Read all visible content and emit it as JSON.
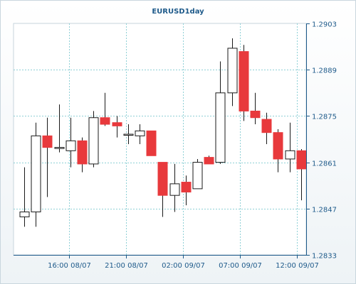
{
  "chart_data": {
    "type": "candlestick",
    "title": "EURUSD1day",
    "ylim": [
      1.2833,
      1.2903
    ],
    "y_ticks": [
      "1.2903",
      "1.2889",
      "1.2875",
      "1.2861",
      "1.2847",
      "1.2833"
    ],
    "x_ticks": [
      "16:00 08/07",
      "21:00 08/07",
      "02:00 09/07",
      "07:00 09/07",
      "12:00 09/07"
    ],
    "grid": true,
    "colors": {
      "up_fill": "#ffffff",
      "down_fill": "#e8393c",
      "wick": "#1a1a1a",
      "grid": "#8fd0d6",
      "axis": "#1e5a8a"
    },
    "candles": [
      {
        "o": 1.28445,
        "h": 1.28595,
        "l": 1.28415,
        "c": 1.2846
      },
      {
        "o": 1.2846,
        "h": 1.2873,
        "l": 1.28415,
        "c": 1.2869
      },
      {
        "o": 1.2869,
        "h": 1.28745,
        "l": 1.28505,
        "c": 1.28655
      },
      {
        "o": 1.28655,
        "h": 1.28785,
        "l": 1.2864,
        "c": 1.28655
      },
      {
        "o": 1.28645,
        "h": 1.28745,
        "l": 1.28595,
        "c": 1.28675
      },
      {
        "o": 1.28675,
        "h": 1.28685,
        "l": 1.2858,
        "c": 1.28605
      },
      {
        "o": 1.28605,
        "h": 1.28765,
        "l": 1.28595,
        "c": 1.28745
      },
      {
        "o": 1.28745,
        "h": 1.2882,
        "l": 1.2872,
        "c": 1.28725
      },
      {
        "o": 1.2873,
        "h": 1.2875,
        "l": 1.28685,
        "c": 1.2872
      },
      {
        "o": 1.28695,
        "h": 1.28725,
        "l": 1.28665,
        "c": 1.28695
      },
      {
        "o": 1.2869,
        "h": 1.28725,
        "l": 1.28665,
        "c": 1.28705
      },
      {
        "o": 1.28705,
        "h": 1.28705,
        "l": 1.2863,
        "c": 1.2863
      },
      {
        "o": 1.2861,
        "h": 1.2861,
        "l": 1.28445,
        "c": 1.2851
      },
      {
        "o": 1.2851,
        "h": 1.28605,
        "l": 1.2846,
        "c": 1.28545
      },
      {
        "o": 1.2855,
        "h": 1.2857,
        "l": 1.2848,
        "c": 1.2852
      },
      {
        "o": 1.2853,
        "h": 1.2862,
        "l": 1.2853,
        "c": 1.2861
      },
      {
        "o": 1.28625,
        "h": 1.2863,
        "l": 1.28605,
        "c": 1.28605
      },
      {
        "o": 1.2861,
        "h": 1.28915,
        "l": 1.28605,
        "c": 1.2882
      },
      {
        "o": 1.2882,
        "h": 1.28985,
        "l": 1.2878,
        "c": 1.28955
      },
      {
        "o": 1.28945,
        "h": 1.28965,
        "l": 1.28735,
        "c": 1.28765
      },
      {
        "o": 1.28765,
        "h": 1.2882,
        "l": 1.28725,
        "c": 1.28745
      },
      {
        "o": 1.2874,
        "h": 1.2876,
        "l": 1.28665,
        "c": 1.287
      },
      {
        "o": 1.287,
        "h": 1.2871,
        "l": 1.2858,
        "c": 1.2862
      },
      {
        "o": 1.2862,
        "h": 1.2873,
        "l": 1.2858,
        "c": 1.28645
      },
      {
        "o": 1.28645,
        "h": 1.2865,
        "l": 1.28495,
        "c": 1.2859
      }
    ]
  }
}
